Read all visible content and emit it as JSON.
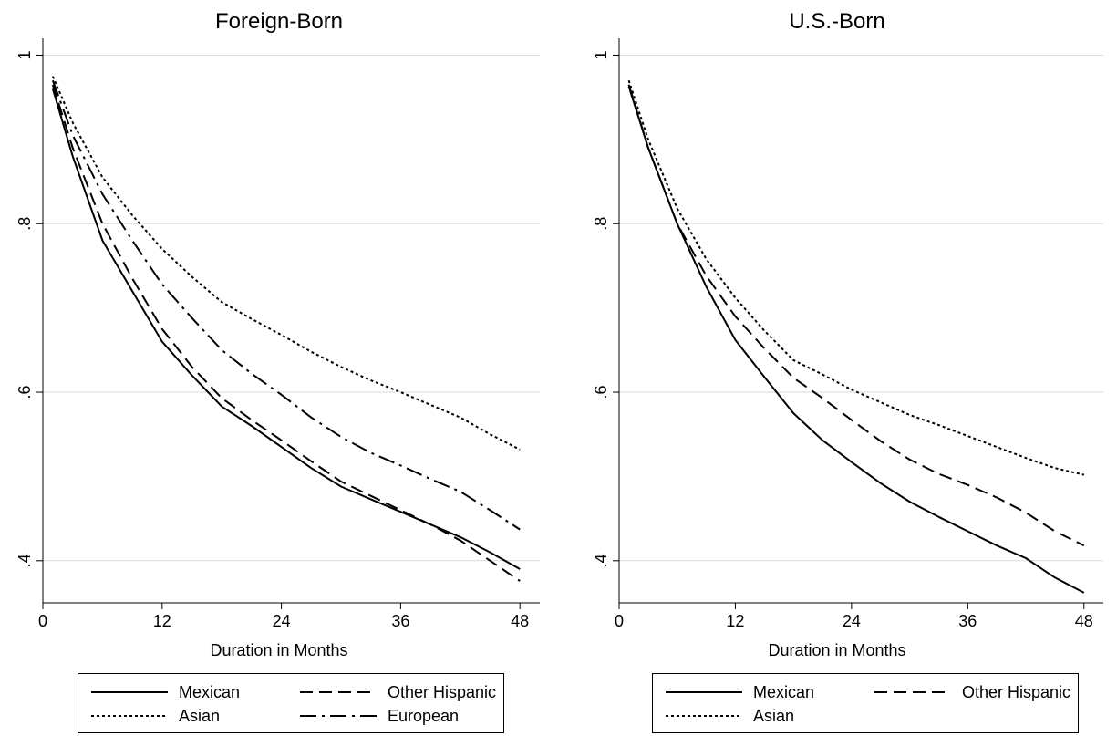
{
  "chart_data": [
    {
      "type": "line",
      "title": "Foreign-Born",
      "xlabel": "Duration in Months",
      "ylabel": "",
      "xlim": [
        0,
        50
      ],
      "ylim": [
        0.35,
        1.02
      ],
      "xticks": [
        0,
        12,
        24,
        36,
        48
      ],
      "xtick_labels": [
        "0",
        "12",
        "24",
        "36",
        "48"
      ],
      "yticks": [
        0.4,
        0.6,
        0.8,
        1.0
      ],
      "ytick_labels": [
        ".4",
        ".6",
        ".8",
        "1"
      ],
      "grid": "horizontal",
      "legend_position": "bottom",
      "series": [
        {
          "name": "Mexican",
          "style": "solid",
          "x": [
            1,
            3,
            6,
            9,
            12,
            15,
            18,
            21,
            24,
            27,
            30,
            33,
            36,
            39,
            42,
            45,
            48
          ],
          "y": [
            0.96,
            0.88,
            0.78,
            0.72,
            0.66,
            0.62,
            0.583,
            0.56,
            0.535,
            0.51,
            0.488,
            0.473,
            0.458,
            0.443,
            0.428,
            0.41,
            0.39
          ]
        },
        {
          "name": "Other Hispanic",
          "style": "dashed",
          "x": [
            1,
            3,
            6,
            9,
            12,
            15,
            18,
            21,
            24,
            27,
            30,
            33,
            36,
            39,
            42,
            45,
            48
          ],
          "y": [
            0.965,
            0.89,
            0.8,
            0.735,
            0.675,
            0.63,
            0.593,
            0.567,
            0.543,
            0.518,
            0.494,
            0.477,
            0.46,
            0.443,
            0.424,
            0.4,
            0.376
          ]
        },
        {
          "name": "Asian",
          "style": "dotted",
          "x": [
            1,
            3,
            6,
            9,
            12,
            15,
            18,
            21,
            24,
            27,
            30,
            33,
            36,
            39,
            42,
            45,
            48
          ],
          "y": [
            0.975,
            0.92,
            0.855,
            0.81,
            0.77,
            0.737,
            0.707,
            0.687,
            0.668,
            0.648,
            0.63,
            0.614,
            0.6,
            0.585,
            0.57,
            0.55,
            0.532
          ]
        },
        {
          "name": "European",
          "style": "dashdot",
          "x": [
            1,
            3,
            6,
            9,
            12,
            15,
            18,
            21,
            24,
            27,
            30,
            33,
            36,
            39,
            42,
            45,
            48
          ],
          "y": [
            0.97,
            0.905,
            0.835,
            0.78,
            0.728,
            0.688,
            0.65,
            0.622,
            0.597,
            0.57,
            0.547,
            0.528,
            0.513,
            0.497,
            0.482,
            0.46,
            0.437
          ]
        }
      ]
    },
    {
      "type": "line",
      "title": "U.S.-Born",
      "xlabel": "Duration in Months",
      "ylabel": "",
      "xlim": [
        0,
        50
      ],
      "ylim": [
        0.35,
        1.02
      ],
      "xticks": [
        0,
        12,
        24,
        36,
        48
      ],
      "xtick_labels": [
        "0",
        "12",
        "24",
        "36",
        "48"
      ],
      "yticks": [
        0.4,
        0.6,
        0.8,
        1.0
      ],
      "ytick_labels": [
        ".4",
        ".6",
        ".8",
        "1"
      ],
      "grid": "horizontal",
      "legend_position": "bottom",
      "series": [
        {
          "name": "Mexican",
          "style": "solid",
          "x": [
            1,
            3,
            6,
            9,
            12,
            15,
            18,
            21,
            24,
            27,
            30,
            33,
            36,
            39,
            42,
            45,
            48
          ],
          "y": [
            0.963,
            0.89,
            0.8,
            0.725,
            0.662,
            0.618,
            0.575,
            0.543,
            0.517,
            0.492,
            0.47,
            0.452,
            0.435,
            0.418,
            0.403,
            0.38,
            0.362
          ]
        },
        {
          "name": "Other Hispanic",
          "style": "dashed",
          "x": [
            1,
            3,
            6,
            9,
            12,
            15,
            18,
            21,
            24,
            27,
            30,
            33,
            36,
            39,
            42,
            45,
            48
          ],
          "y": [
            0.965,
            0.89,
            0.8,
            0.738,
            0.69,
            0.652,
            0.617,
            0.593,
            0.567,
            0.542,
            0.52,
            0.503,
            0.49,
            0.475,
            0.457,
            0.435,
            0.418
          ]
        },
        {
          "name": "Asian",
          "style": "dotted",
          "x": [
            1,
            3,
            6,
            9,
            12,
            15,
            18,
            21,
            24,
            27,
            30,
            33,
            36,
            39,
            42,
            45,
            48
          ],
          "y": [
            0.97,
            0.9,
            0.818,
            0.758,
            0.712,
            0.673,
            0.638,
            0.621,
            0.603,
            0.588,
            0.573,
            0.561,
            0.548,
            0.535,
            0.522,
            0.51,
            0.502
          ]
        }
      ]
    }
  ]
}
